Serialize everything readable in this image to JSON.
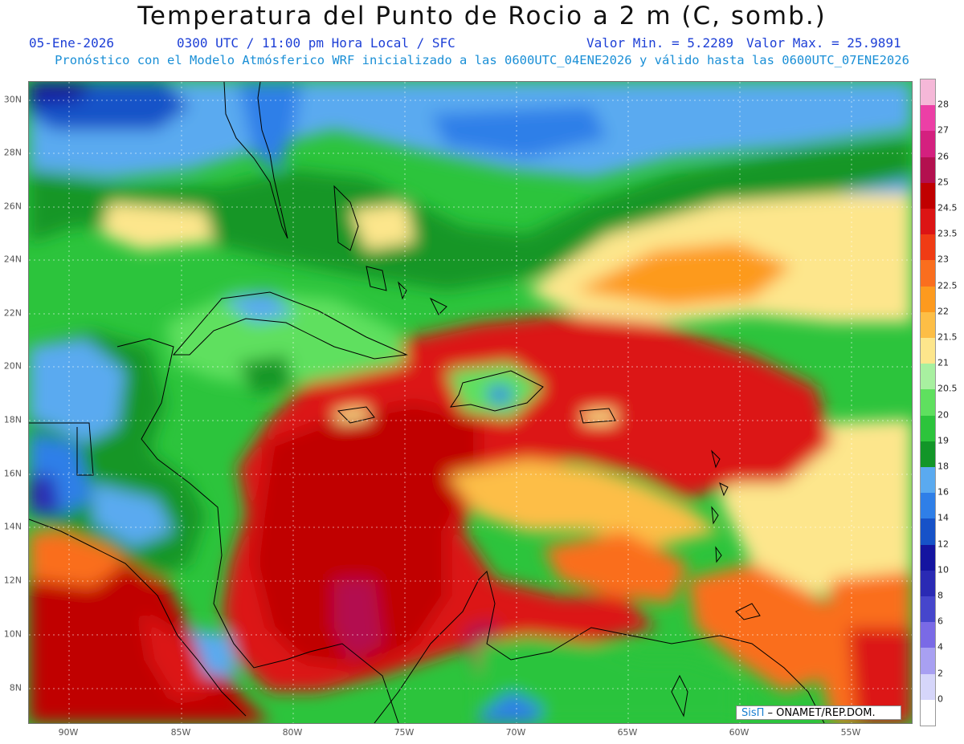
{
  "header": {
    "title": "Temperatura del Punto de Rocio a 2 m (C, somb.)",
    "date": "05-Ene-2026",
    "time": "0300 UTC / 11:00 pm Hora Local / SFC",
    "min_value": "Valor Min. = 5.2289",
    "max_value": "Valor Max. = 25.9891",
    "forecast_note": "Pronóstico con el Modelo Atmósferico WRF inicializado a las 0600UTC_04ENE2026 y válido hasta las  0600UTC_07ENE2026"
  },
  "axes": {
    "lon_labels": [
      "90W",
      "85W",
      "80W",
      "75W",
      "70W",
      "65W",
      "60W",
      "55W"
    ],
    "lat_labels": [
      "30N",
      "28N",
      "26N",
      "24N",
      "22N",
      "20N",
      "18N",
      "16N",
      "14N",
      "12N",
      "10N",
      "8N"
    ]
  },
  "colorbar": {
    "levels": [
      {
        "label": "28",
        "color": "#f5b8d8"
      },
      {
        "label": "27",
        "color": "#ec3fa6"
      },
      {
        "label": "26",
        "color": "#d4207f"
      },
      {
        "label": "25",
        "color": "#b3104f"
      },
      {
        "label": "24.5",
        "color": "#c00000"
      },
      {
        "label": "23.5",
        "color": "#dc1414"
      },
      {
        "label": "23",
        "color": "#f03c14"
      },
      {
        "label": "22.5",
        "color": "#fa6e1e"
      },
      {
        "label": "22",
        "color": "#fd9a1e"
      },
      {
        "label": "21.5",
        "color": "#fdbe46"
      },
      {
        "label": "21",
        "color": "#fde68c"
      },
      {
        "label": "20.5",
        "color": "#a8f0a0"
      },
      {
        "label": "20",
        "color": "#5fe05f"
      },
      {
        "label": "19",
        "color": "#2cc43c"
      },
      {
        "label": "18",
        "color": "#129628"
      },
      {
        "label": "16",
        "color": "#5aaaf0"
      },
      {
        "label": "14",
        "color": "#2f7fe8"
      },
      {
        "label": "12",
        "color": "#1652c8"
      },
      {
        "label": "10",
        "color": "#1414a0"
      },
      {
        "label": "8",
        "color": "#2a2ab4"
      },
      {
        "label": "6",
        "color": "#4646cc"
      },
      {
        "label": "4",
        "color": "#7a6ae6"
      },
      {
        "label": "2",
        "color": "#a8a0f2"
      },
      {
        "label": "0",
        "color": "#d6d6fa"
      },
      {
        "label": "",
        "color": "#ffffff"
      }
    ]
  },
  "credit": {
    "logo": "SisΠ",
    "text": " – ONAMET/REP.DOM."
  }
}
